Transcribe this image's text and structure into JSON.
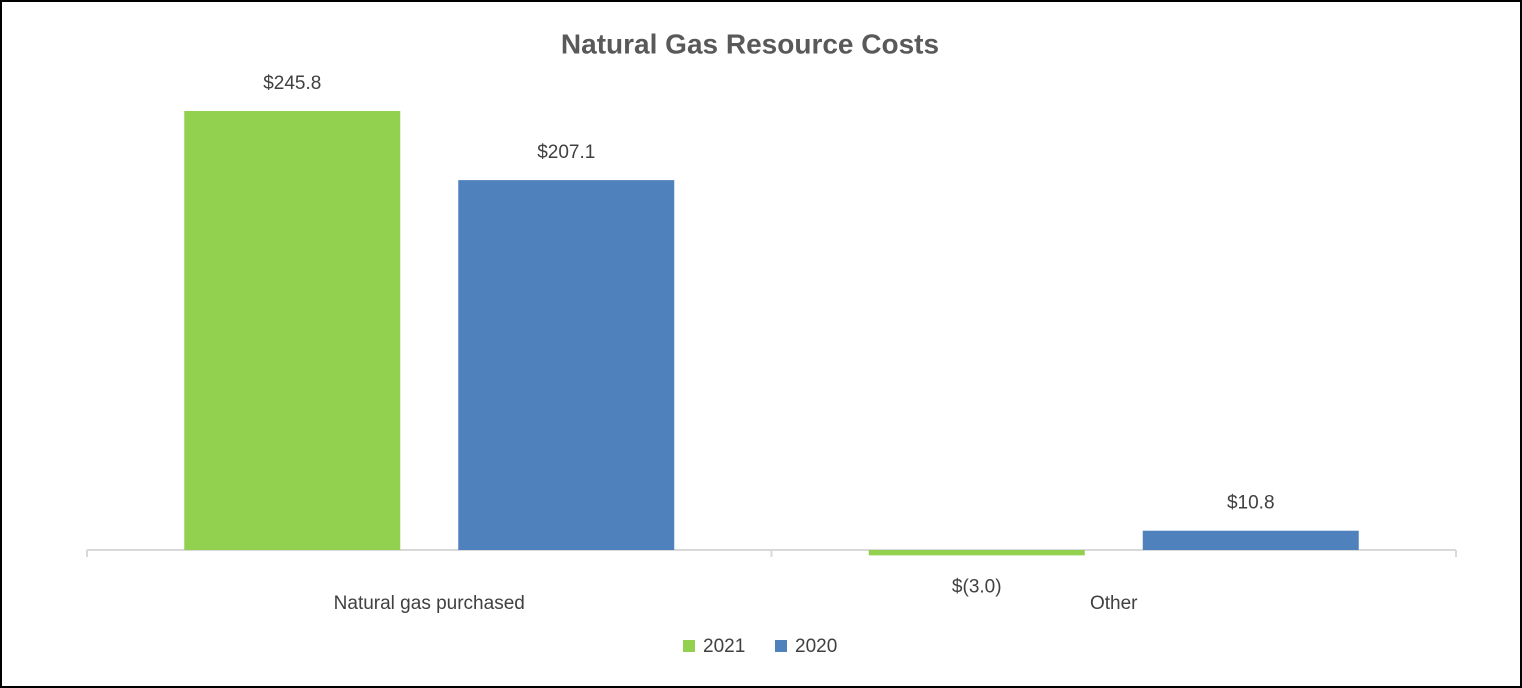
{
  "chart_data": {
    "type": "bar",
    "title": "Natural Gas Resource Costs",
    "categories": [
      "Natural gas purchased",
      "Other"
    ],
    "series": [
      {
        "name": "2021",
        "color": "#92d050",
        "values": [
          245.8,
          -3.0
        ],
        "value_labels": [
          "$245.8",
          "$(3.0)"
        ]
      },
      {
        "name": "2020",
        "color": "#4f81bd",
        "values": [
          207.1,
          10.8
        ],
        "value_labels": [
          "$207.1",
          "$10.8"
        ]
      }
    ],
    "legend": "bottom"
  }
}
